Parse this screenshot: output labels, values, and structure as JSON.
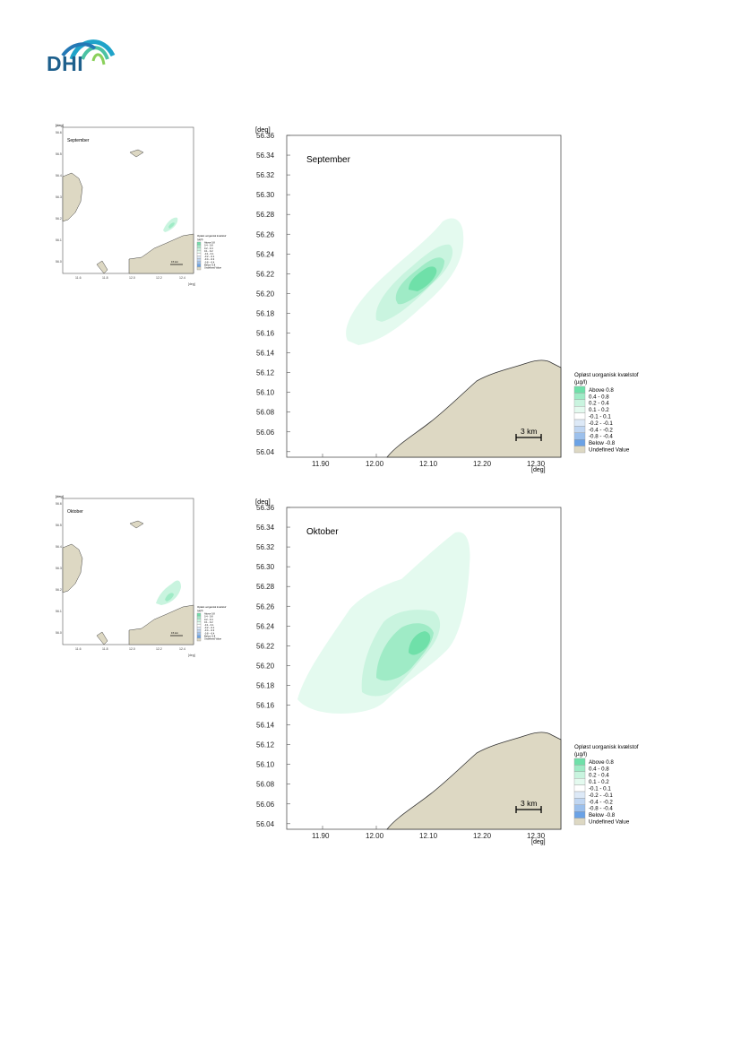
{
  "logo": {
    "text": "DHI"
  },
  "colors": {
    "land": "#ddd8c3",
    "above_0_8": "#6fe0a9",
    "c_0_4_0_8": "#9febc6",
    "c_0_2_0_4": "#c9f4df",
    "c_0_1_0_2": "#e4faef",
    "c_m0_1_0_1": "#ffffff",
    "c_m0_2_m0_1": "#dde9f7",
    "c_m0_4_m0_2": "#c0d6f2",
    "c_m0_8_m0_4": "#9cc0ec",
    "below_m0_8": "#6aa2e6"
  },
  "axes": {
    "y_unit": "[deg]",
    "x_unit": "[deg]",
    "y_ticks": [
      "56.36",
      "56.34",
      "56.32",
      "56.30",
      "56.28",
      "56.26",
      "56.24",
      "56.22",
      "56.20",
      "56.18",
      "56.16",
      "56.14",
      "56.12",
      "56.10",
      "56.08",
      "56.06",
      "56.04"
    ],
    "x_ticks": [
      "11.90",
      "12.00",
      "12.10",
      "12.20",
      "12.30"
    ],
    "overview_y_ticks": [
      "56.6",
      "56.5",
      "56.4",
      "56.3",
      "56.2",
      "56.1",
      "56.0"
    ],
    "overview_x_ticks": [
      "11.6",
      "11.8",
      "12.0",
      "12.2",
      "12.4"
    ]
  },
  "legend": {
    "title_line1": "Opløst uorganisk kvælstof",
    "title_line2": "(µg/l)",
    "items": [
      {
        "label": "Above  0.8",
        "color": "#6fe0a9"
      },
      {
        "label": "0.4 -  0.8",
        "color": "#9febc6"
      },
      {
        "label": "0.2 -  0.4",
        "color": "#c9f4df"
      },
      {
        "label": "0.1 -  0.2",
        "color": "#e4faef"
      },
      {
        "label": "-0.1 -  0.1",
        "color": "#ffffff"
      },
      {
        "label": "-0.2 - -0.1",
        "color": "#dde9f7"
      },
      {
        "label": "-0.4 - -0.2",
        "color": "#c0d6f2"
      },
      {
        "label": "-0.8 - -0.4",
        "color": "#9cc0ec"
      },
      {
        "label": "Below -0.8",
        "color": "#6aa2e6"
      },
      {
        "label": "Undefined Value",
        "color": "#ddd8c3"
      }
    ]
  },
  "scale_bar": {
    "label": "3 km"
  },
  "overview_scale_bar": {
    "label": "15 km"
  },
  "panels": [
    {
      "month": "September"
    },
    {
      "month": "Oktober"
    }
  ]
}
